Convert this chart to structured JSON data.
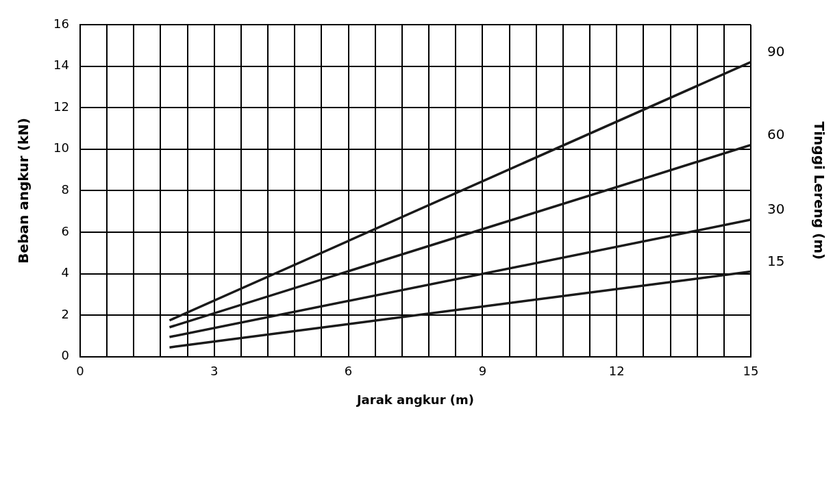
{
  "chart_data": {
    "type": "line",
    "xlabel": "Jarak angkur (m)",
    "ylabel": "Beban angkur (kN)",
    "y2label": "Tinggi Lereng (m)",
    "x": [
      2,
      15
    ],
    "series": [
      {
        "name": "90",
        "color": "#1a1a1a",
        "values": [
          1.75,
          14.2
        ]
      },
      {
        "name": "60",
        "color": "#1a1a1a",
        "values": [
          1.42,
          10.2
        ]
      },
      {
        "name": "30",
        "color": "#1a1a1a",
        "values": [
          0.95,
          6.6
        ]
      },
      {
        "name": "15",
        "color": "#1a1a1a",
        "values": [
          0.45,
          4.1
        ]
      }
    ],
    "xlim": [
      0,
      15
    ],
    "xticks": [
      0,
      {
        "value": 0.6,
        "label": null
      },
      {
        "value": 1.2,
        "label": null
      },
      {
        "value": 1.8,
        "label": null
      },
      {
        "value": 2.4,
        "label": null
      },
      3,
      {
        "value": 3.6,
        "label": null
      },
      {
        "value": 4.2,
        "label": null
      },
      {
        "value": 4.8,
        "label": null
      },
      {
        "value": 5.4,
        "label": null
      },
      6,
      {
        "value": 6.6,
        "label": null
      },
      {
        "value": 7.2,
        "label": null
      },
      {
        "value": 7.8,
        "label": null
      },
      {
        "value": 8.4,
        "label": null
      },
      9,
      {
        "value": 9.6,
        "label": null
      },
      {
        "value": 10.2,
        "label": null
      },
      {
        "value": 10.8,
        "label": null
      },
      {
        "value": 11.4,
        "label": null
      },
      12,
      {
        "value": 12.6,
        "label": null
      },
      {
        "value": 13.2,
        "label": null
      },
      {
        "value": 13.8,
        "label": null
      },
      {
        "value": 14.4,
        "label": null
      },
      15
    ],
    "ylim": [
      0,
      16
    ],
    "yticks": [
      0,
      2,
      4,
      6,
      8,
      10,
      12,
      14,
      16
    ],
    "grid": true,
    "legend": false,
    "marker": "none",
    "line_style": "solid"
  }
}
